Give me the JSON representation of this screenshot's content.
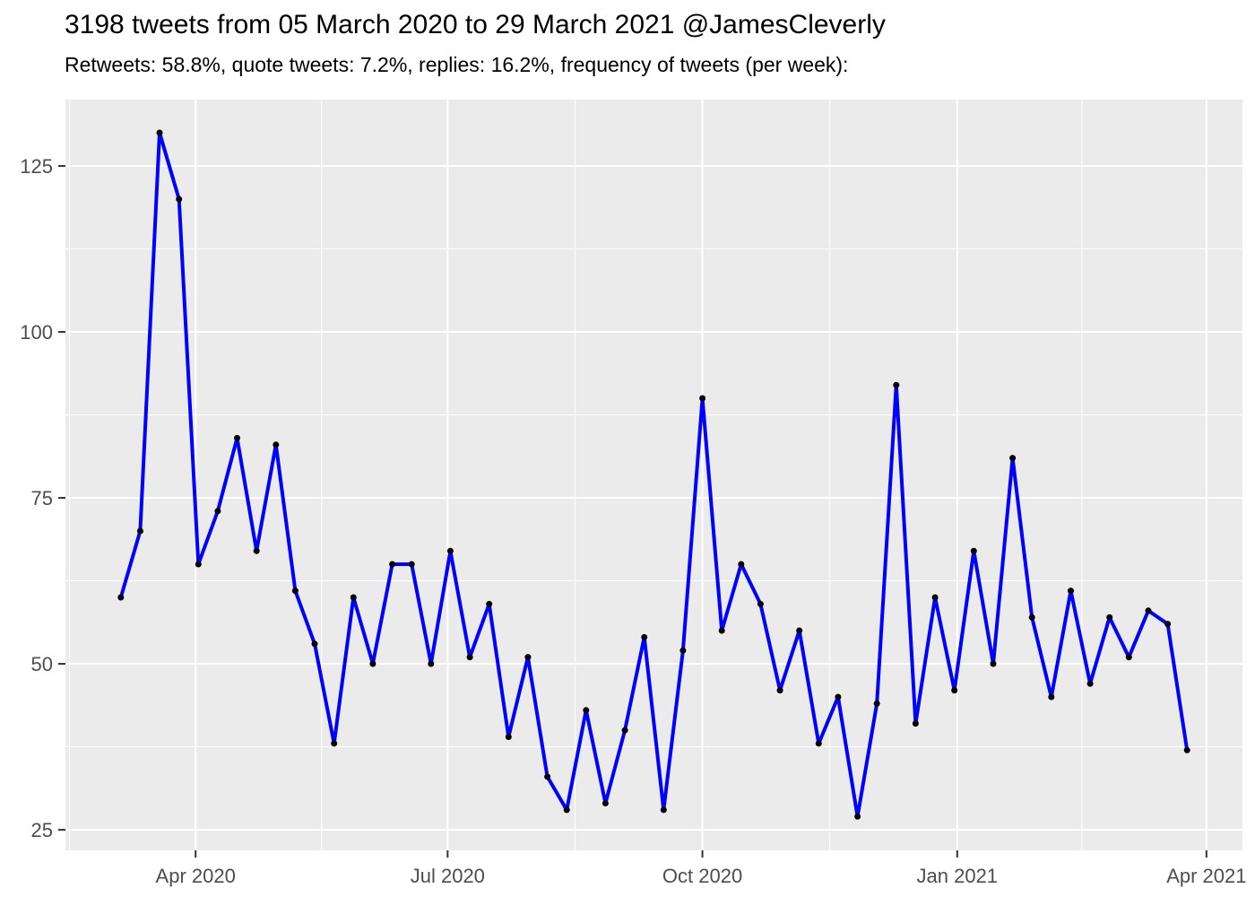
{
  "chart_data": {
    "type": "line",
    "title": "3198 tweets from 05 March 2020 to 29 March 2021 @JamesCleverly",
    "subtitle": "Retweets: 58.8%, quote tweets: 7.2%, replies: 16.2%, frequency of tweets (per week):",
    "stats": {
      "total_tweets": 3198,
      "date_range": "05 March 2020 to 29 March 2021",
      "account": "@JamesCleverly",
      "retweets_pct": "58.8%",
      "quote_tweets_pct": "7.2%",
      "replies_pct": "16.2%"
    },
    "xlabel": "",
    "ylabel": "",
    "grid": "on",
    "legend": "none",
    "xlim": [
      "2020-02-14",
      "2021-04-14"
    ],
    "ylim": [
      21.9,
      135.0
    ],
    "x_ticks": [
      {
        "date": "2020-04-01",
        "label": "Apr 2020"
      },
      {
        "date": "2020-07-01",
        "label": "Jul 2020"
      },
      {
        "date": "2020-10-01",
        "label": "Oct 2020"
      },
      {
        "date": "2021-01-01",
        "label": "Jan 2021"
      },
      {
        "date": "2021-04-01",
        "label": "Apr 2021"
      }
    ],
    "y_ticks": [
      25,
      50,
      75,
      100,
      125
    ],
    "series": [
      {
        "name": "tweets per week",
        "x": [
          "2020-03-05",
          "2020-03-12",
          "2020-03-19",
          "2020-03-26",
          "2020-04-02",
          "2020-04-09",
          "2020-04-16",
          "2020-04-23",
          "2020-04-30",
          "2020-05-07",
          "2020-05-14",
          "2020-05-21",
          "2020-05-28",
          "2020-06-04",
          "2020-06-11",
          "2020-06-18",
          "2020-06-25",
          "2020-07-02",
          "2020-07-09",
          "2020-07-16",
          "2020-07-23",
          "2020-07-30",
          "2020-08-06",
          "2020-08-13",
          "2020-08-20",
          "2020-08-27",
          "2020-09-03",
          "2020-09-10",
          "2020-09-17",
          "2020-09-24",
          "2020-10-01",
          "2020-10-08",
          "2020-10-15",
          "2020-10-22",
          "2020-10-29",
          "2020-11-05",
          "2020-11-12",
          "2020-11-19",
          "2020-11-26",
          "2020-12-03",
          "2020-12-10",
          "2020-12-17",
          "2020-12-24",
          "2020-12-31",
          "2021-01-07",
          "2021-01-14",
          "2021-01-21",
          "2021-01-28",
          "2021-02-04",
          "2021-02-11",
          "2021-02-18",
          "2021-02-25",
          "2021-03-04",
          "2021-03-11",
          "2021-03-18",
          "2021-03-25"
        ],
        "values": [
          60,
          70,
          130,
          120,
          65,
          73,
          84,
          67,
          83,
          61,
          53,
          38,
          60,
          50,
          65,
          65,
          50,
          67,
          51,
          59,
          39,
          51,
          33,
          28,
          43,
          29,
          40,
          54,
          28,
          52,
          90,
          55,
          65,
          59,
          46,
          55,
          38,
          45,
          27,
          44,
          92,
          41,
          60,
          46,
          67,
          50,
          81,
          57,
          45,
          61,
          47,
          57,
          51,
          58,
          56,
          37
        ]
      }
    ],
    "colors": {
      "line": "#0000FF",
      "point": "#000000",
      "panel_background": "#EBEBEB",
      "gridline": "#FFFFFF",
      "tick_label": "#4D4D4D",
      "tick_mark": "#333333",
      "title_text": "#000000"
    }
  }
}
